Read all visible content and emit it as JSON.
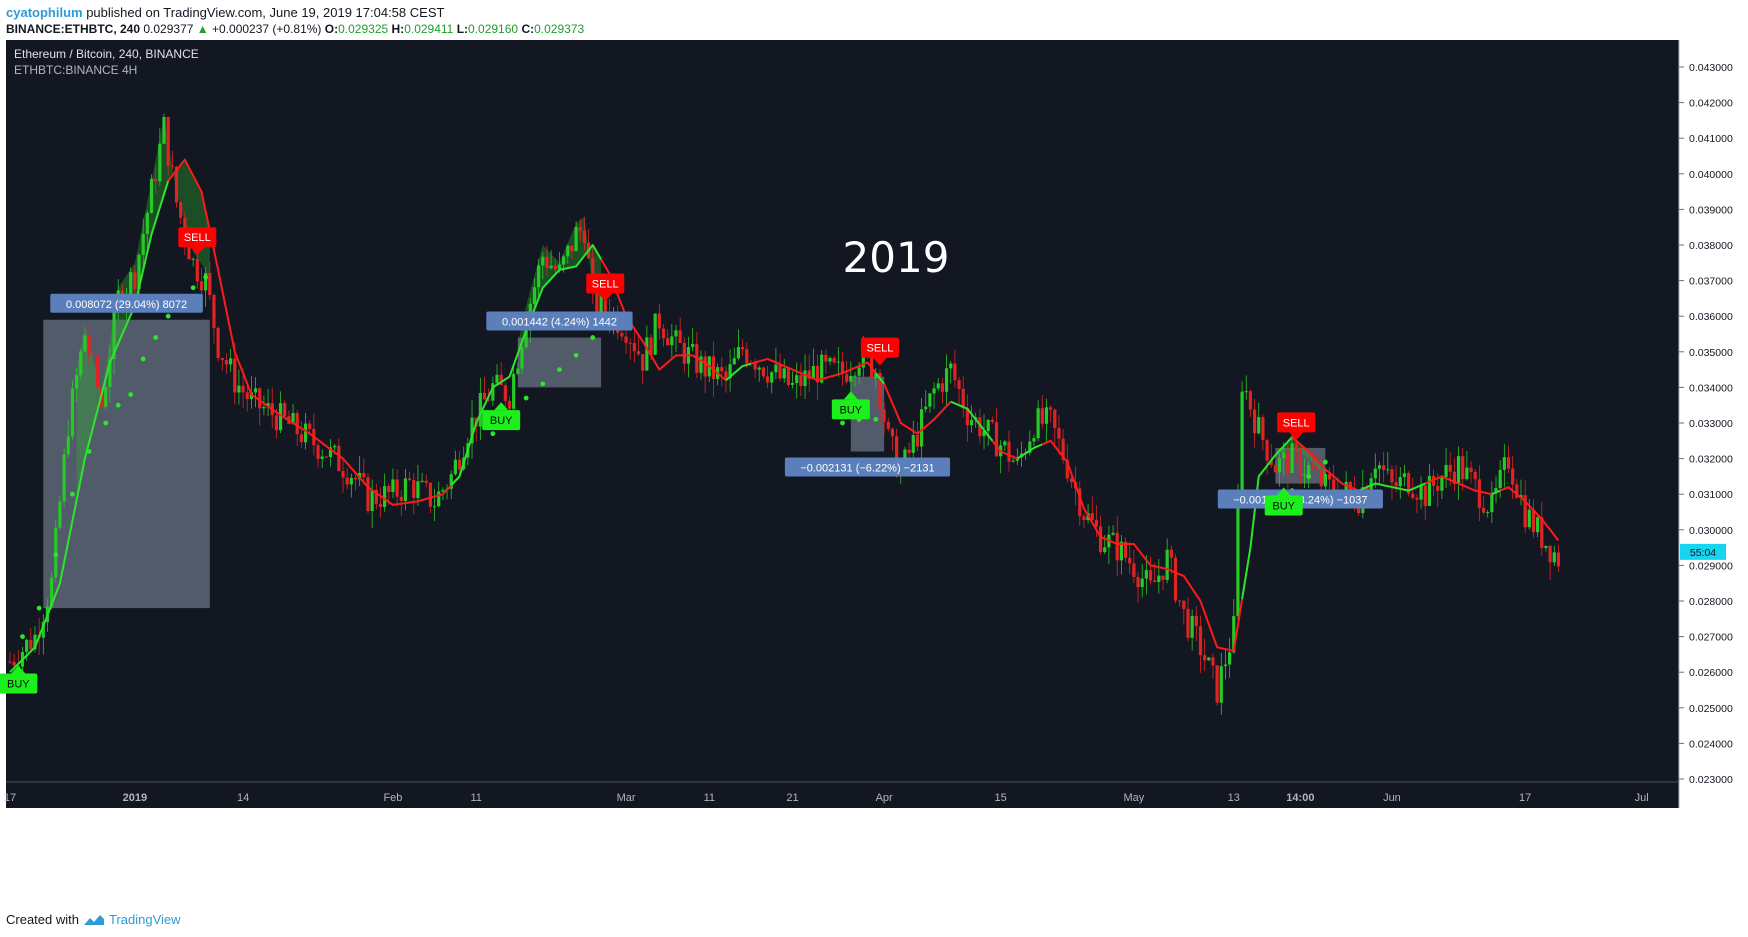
{
  "header": {
    "user": "cyatophilum",
    "published": "published on TradingView.com, June 19, 2019 17:04:58 CEST",
    "symbol": "BINANCE:ETHBTC, 240",
    "last": "0.029377",
    "change": "+0.000237 (+0.81%)",
    "o_label": "O:",
    "o": "0.029325",
    "h_label": "H:",
    "h": "0.029411",
    "l_label": "L:",
    "l": "0.029160",
    "c_label": "C:",
    "c": "0.029373"
  },
  "chart_data": {
    "type": "candlestick",
    "title": "Ethereum / Bitcoin, 240, BINANCE",
    "subtitle": "ETHBTC:BINANCE 4H",
    "annotation": "2019",
    "ylim": [
      0.023,
      0.0435
    ],
    "yticks": [
      "0.023000",
      "0.024000",
      "0.025000",
      "0.026000",
      "0.027000",
      "0.028000",
      "0.029000",
      "0.030000",
      "0.031000",
      "0.032000",
      "0.033000",
      "0.034000",
      "0.035000",
      "0.036000",
      "0.037000",
      "0.038000",
      "0.039000",
      "0.040000",
      "0.041000",
      "0.042000",
      "0.043000"
    ],
    "xticks": [
      {
        "label": "17",
        "t": 0
      },
      {
        "label": "2019",
        "t": 15
      },
      {
        "label": "14",
        "t": 28
      },
      {
        "label": "Feb",
        "t": 46
      },
      {
        "label": "11",
        "t": 56
      },
      {
        "label": "Mar",
        "t": 74
      },
      {
        "label": "11",
        "t": 84
      },
      {
        "label": "21",
        "t": 94
      },
      {
        "label": "Apr",
        "t": 105
      },
      {
        "label": "15",
        "t": 119
      },
      {
        "label": "May",
        "t": 135
      },
      {
        "label": "13",
        "t": 147
      },
      {
        "label": "14:00",
        "t": 155
      },
      {
        "label": "Jun",
        "t": 166
      },
      {
        "label": "17",
        "t": 182
      },
      {
        "label": "Jul",
        "t": 196
      }
    ],
    "price_path": [
      [
        0,
        0.0263
      ],
      [
        3,
        0.027
      ],
      [
        5,
        0.0285
      ],
      [
        7,
        0.033
      ],
      [
        9,
        0.0355
      ],
      [
        11,
        0.0335
      ],
      [
        13,
        0.0365
      ],
      [
        15,
        0.0372
      ],
      [
        17,
        0.0395
      ],
      [
        18.5,
        0.0413
      ],
      [
        20,
        0.0392
      ],
      [
        22,
        0.0375
      ],
      [
        23.5,
        0.037
      ],
      [
        25,
        0.0352
      ],
      [
        27,
        0.0342
      ],
      [
        29,
        0.0336
      ],
      [
        32,
        0.0332
      ],
      [
        35,
        0.0327
      ],
      [
        38,
        0.0322
      ],
      [
        41,
        0.0316
      ],
      [
        43,
        0.0309
      ],
      [
        46,
        0.031
      ],
      [
        48,
        0.0313
      ],
      [
        51,
        0.0308
      ],
      [
        53,
        0.0315
      ],
      [
        55,
        0.0328
      ],
      [
        58,
        0.034
      ],
      [
        60,
        0.0338
      ],
      [
        62,
        0.036
      ],
      [
        64,
        0.0377
      ],
      [
        66,
        0.0372
      ],
      [
        68,
        0.0383
      ],
      [
        69,
        0.0385
      ],
      [
        70,
        0.0364
      ],
      [
        72,
        0.0361
      ],
      [
        74,
        0.0357
      ],
      [
        76,
        0.0348
      ],
      [
        78,
        0.0359
      ],
      [
        80,
        0.0352
      ],
      [
        83,
        0.0346
      ],
      [
        86,
        0.0342
      ],
      [
        88,
        0.0351
      ],
      [
        91,
        0.0345
      ],
      [
        94,
        0.034
      ],
      [
        97,
        0.0345
      ],
      [
        100,
        0.0344
      ],
      [
        102,
        0.0349
      ],
      [
        104,
        0.0345
      ],
      [
        105.5,
        0.0325
      ],
      [
        107,
        0.0316
      ],
      [
        109,
        0.0327
      ],
      [
        111,
        0.0339
      ],
      [
        113,
        0.0345
      ],
      [
        115,
        0.0333
      ],
      [
        117,
        0.0328
      ],
      [
        119,
        0.0324
      ],
      [
        121,
        0.0318
      ],
      [
        123,
        0.033
      ],
      [
        125,
        0.033
      ],
      [
        127,
        0.0318
      ],
      [
        129,
        0.0305
      ],
      [
        131,
        0.0298
      ],
      [
        133,
        0.0295
      ],
      [
        135,
        0.029
      ],
      [
        137,
        0.0283
      ],
      [
        139,
        0.0292
      ],
      [
        141,
        0.0276
      ],
      [
        143,
        0.0267
      ],
      [
        145,
        0.0255
      ],
      [
        147,
        0.0272
      ],
      [
        148,
        0.0342
      ],
      [
        150,
        0.0328
      ],
      [
        152,
        0.0318
      ],
      [
        154,
        0.032
      ],
      [
        156,
        0.0317
      ],
      [
        158,
        0.0312
      ],
      [
        160,
        0.0311
      ],
      [
        162,
        0.0309
      ],
      [
        164,
        0.032
      ],
      [
        166,
        0.0312
      ],
      [
        168,
        0.0314
      ],
      [
        170,
        0.031
      ],
      [
        172,
        0.0315
      ],
      [
        174,
        0.0318
      ],
      [
        176,
        0.0312
      ],
      [
        178,
        0.0306
      ],
      [
        180,
        0.032
      ],
      [
        182,
        0.0305
      ],
      [
        184,
        0.0298
      ],
      [
        186,
        0.0292
      ]
    ],
    "trend_line": [
      [
        0,
        0.026
      ],
      [
        3,
        0.0267
      ],
      [
        6,
        0.0285
      ],
      [
        9,
        0.032
      ],
      [
        12,
        0.0347
      ],
      [
        15,
        0.0363
      ],
      [
        17,
        0.0383
      ],
      [
        19,
        0.0398
      ],
      [
        21,
        0.0404
      ],
      [
        23,
        0.0395
      ],
      [
        25,
        0.0373
      ],
      [
        27,
        0.035
      ],
      [
        29,
        0.0338
      ],
      [
        32,
        0.0333
      ],
      [
        36,
        0.0327
      ],
      [
        40,
        0.032
      ],
      [
        43,
        0.0312
      ],
      [
        46,
        0.0307
      ],
      [
        49,
        0.0308
      ],
      [
        52,
        0.031
      ],
      [
        54,
        0.0315
      ],
      [
        56,
        0.033
      ],
      [
        58,
        0.034
      ],
      [
        60,
        0.0343
      ],
      [
        62,
        0.0356
      ],
      [
        64,
        0.0368
      ],
      [
        66,
        0.0373
      ],
      [
        68,
        0.0374
      ],
      [
        70,
        0.038
      ],
      [
        72,
        0.0372
      ],
      [
        74,
        0.036
      ],
      [
        76,
        0.0353
      ],
      [
        78,
        0.0345
      ],
      [
        80,
        0.0349
      ],
      [
        82,
        0.0349
      ],
      [
        84,
        0.0346
      ],
      [
        86,
        0.0342
      ],
      [
        88,
        0.0346
      ],
      [
        91,
        0.0348
      ],
      [
        94,
        0.0345
      ],
      [
        97,
        0.0342
      ],
      [
        100,
        0.0344
      ],
      [
        103,
        0.0347
      ],
      [
        105,
        0.0341
      ],
      [
        107,
        0.033
      ],
      [
        109,
        0.0327
      ],
      [
        111,
        0.0331
      ],
      [
        113,
        0.0336
      ],
      [
        115,
        0.0334
      ],
      [
        117,
        0.0328
      ],
      [
        119,
        0.0322
      ],
      [
        121,
        0.032
      ],
      [
        123,
        0.0323
      ],
      [
        125,
        0.0325
      ],
      [
        127,
        0.0319
      ],
      [
        129,
        0.0306
      ],
      [
        131,
        0.0298
      ],
      [
        133,
        0.0296
      ],
      [
        135,
        0.0296
      ],
      [
        137,
        0.029
      ],
      [
        139,
        0.0289
      ],
      [
        141,
        0.0287
      ],
      [
        143,
        0.028
      ],
      [
        145,
        0.0267
      ],
      [
        147,
        0.0266
      ],
      [
        149,
        0.0295
      ],
      [
        150,
        0.0315
      ],
      [
        152,
        0.0321
      ],
      [
        154,
        0.0326
      ],
      [
        156,
        0.0322
      ],
      [
        158,
        0.0317
      ],
      [
        160,
        0.0313
      ],
      [
        162,
        0.0311
      ],
      [
        164,
        0.0313
      ],
      [
        166,
        0.0312
      ],
      [
        168,
        0.0311
      ],
      [
        170,
        0.0313
      ],
      [
        172,
        0.0315
      ],
      [
        174,
        0.0313
      ],
      [
        176,
        0.0311
      ],
      [
        178,
        0.031
      ],
      [
        180,
        0.0312
      ],
      [
        182,
        0.0308
      ],
      [
        184,
        0.0303
      ],
      [
        186,
        0.0297
      ]
    ],
    "trend_red_ranges": [
      [
        19,
        53
      ],
      [
        71,
        86
      ],
      [
        89,
        104
      ],
      [
        105,
        113
      ],
      [
        118,
        121
      ],
      [
        124,
        148
      ],
      [
        154,
        162
      ],
      [
        170,
        178
      ],
      [
        179,
        187
      ]
    ],
    "stop_dots": [
      [
        1.5,
        0.027
      ],
      [
        3.5,
        0.0278
      ],
      [
        5.5,
        0.0293
      ],
      [
        7.5,
        0.031
      ],
      [
        9.5,
        0.0322
      ],
      [
        11.5,
        0.033
      ],
      [
        13,
        0.0335
      ],
      [
        14.5,
        0.0338
      ],
      [
        16,
        0.0348
      ],
      [
        17.5,
        0.0354
      ],
      [
        19,
        0.036
      ],
      [
        20.5,
        0.0364
      ],
      [
        22,
        0.0368
      ],
      [
        23.5,
        0.0371
      ],
      [
        58,
        0.0327
      ],
      [
        60,
        0.0333
      ],
      [
        62,
        0.0337
      ],
      [
        64,
        0.0341
      ],
      [
        66,
        0.0345
      ],
      [
        68,
        0.0349
      ],
      [
        70,
        0.0354
      ],
      [
        72,
        0.0357
      ],
      [
        100,
        0.033
      ],
      [
        102,
        0.0331
      ],
      [
        104,
        0.0331
      ],
      [
        154,
        0.0311
      ],
      [
        156,
        0.0315
      ],
      [
        158,
        0.0319
      ]
    ],
    "signals": [
      {
        "type": "buy",
        "label": "BUY",
        "t": 1,
        "price": 0.0263
      },
      {
        "type": "sell",
        "label": "SELL",
        "t": 22.5,
        "price": 0.0376
      },
      {
        "type": "buy",
        "label": "BUY",
        "t": 59,
        "price": 0.0337
      },
      {
        "type": "sell",
        "label": "SELL",
        "t": 71.5,
        "price": 0.0363
      },
      {
        "type": "buy",
        "label": "BUY",
        "t": 101,
        "price": 0.034
      },
      {
        "type": "sell",
        "label": "SELL",
        "t": 104.5,
        "price": 0.0345
      },
      {
        "type": "buy",
        "label": "BUY",
        "t": 153,
        "price": 0.0313
      },
      {
        "type": "sell",
        "label": "SELL",
        "t": 154.5,
        "price": 0.0324
      }
    ],
    "measure_boxes": [
      {
        "t0": 4,
        "t1": 24,
        "p0": 0.0278,
        "p1": 0.0359,
        "label": "0.008072 (29.04%) 8072"
      },
      {
        "t0": 61,
        "t1": 71,
        "p0": 0.034,
        "p1": 0.0354,
        "label": "0.001442 (4.24%) 1442"
      },
      {
        "t0": 101,
        "t1": 105,
        "p0": 0.0322,
        "p1": 0.0343,
        "label": "−0.002131 (−6.22%) −2131"
      },
      {
        "t0": 152,
        "t1": 158,
        "p0": 0.0313,
        "p1": 0.0323,
        "label": "−0.001037 (−3.24%) −1037"
      }
    ],
    "price_tag": "55:04",
    "price_tag_value": 0.02938
  },
  "colors": {
    "background": "#131722",
    "up": "#26c926",
    "down": "#e02424",
    "trend_up": "#2ee52e",
    "trend_down": "#ff1a1a",
    "buy": "#1cf01c",
    "sell": "#ff0000",
    "box": "#7d8899",
    "label_bg": "#5b7fba",
    "tag": "#17d5ee"
  },
  "footer": {
    "created": "Created with",
    "brand": "TradingView"
  }
}
